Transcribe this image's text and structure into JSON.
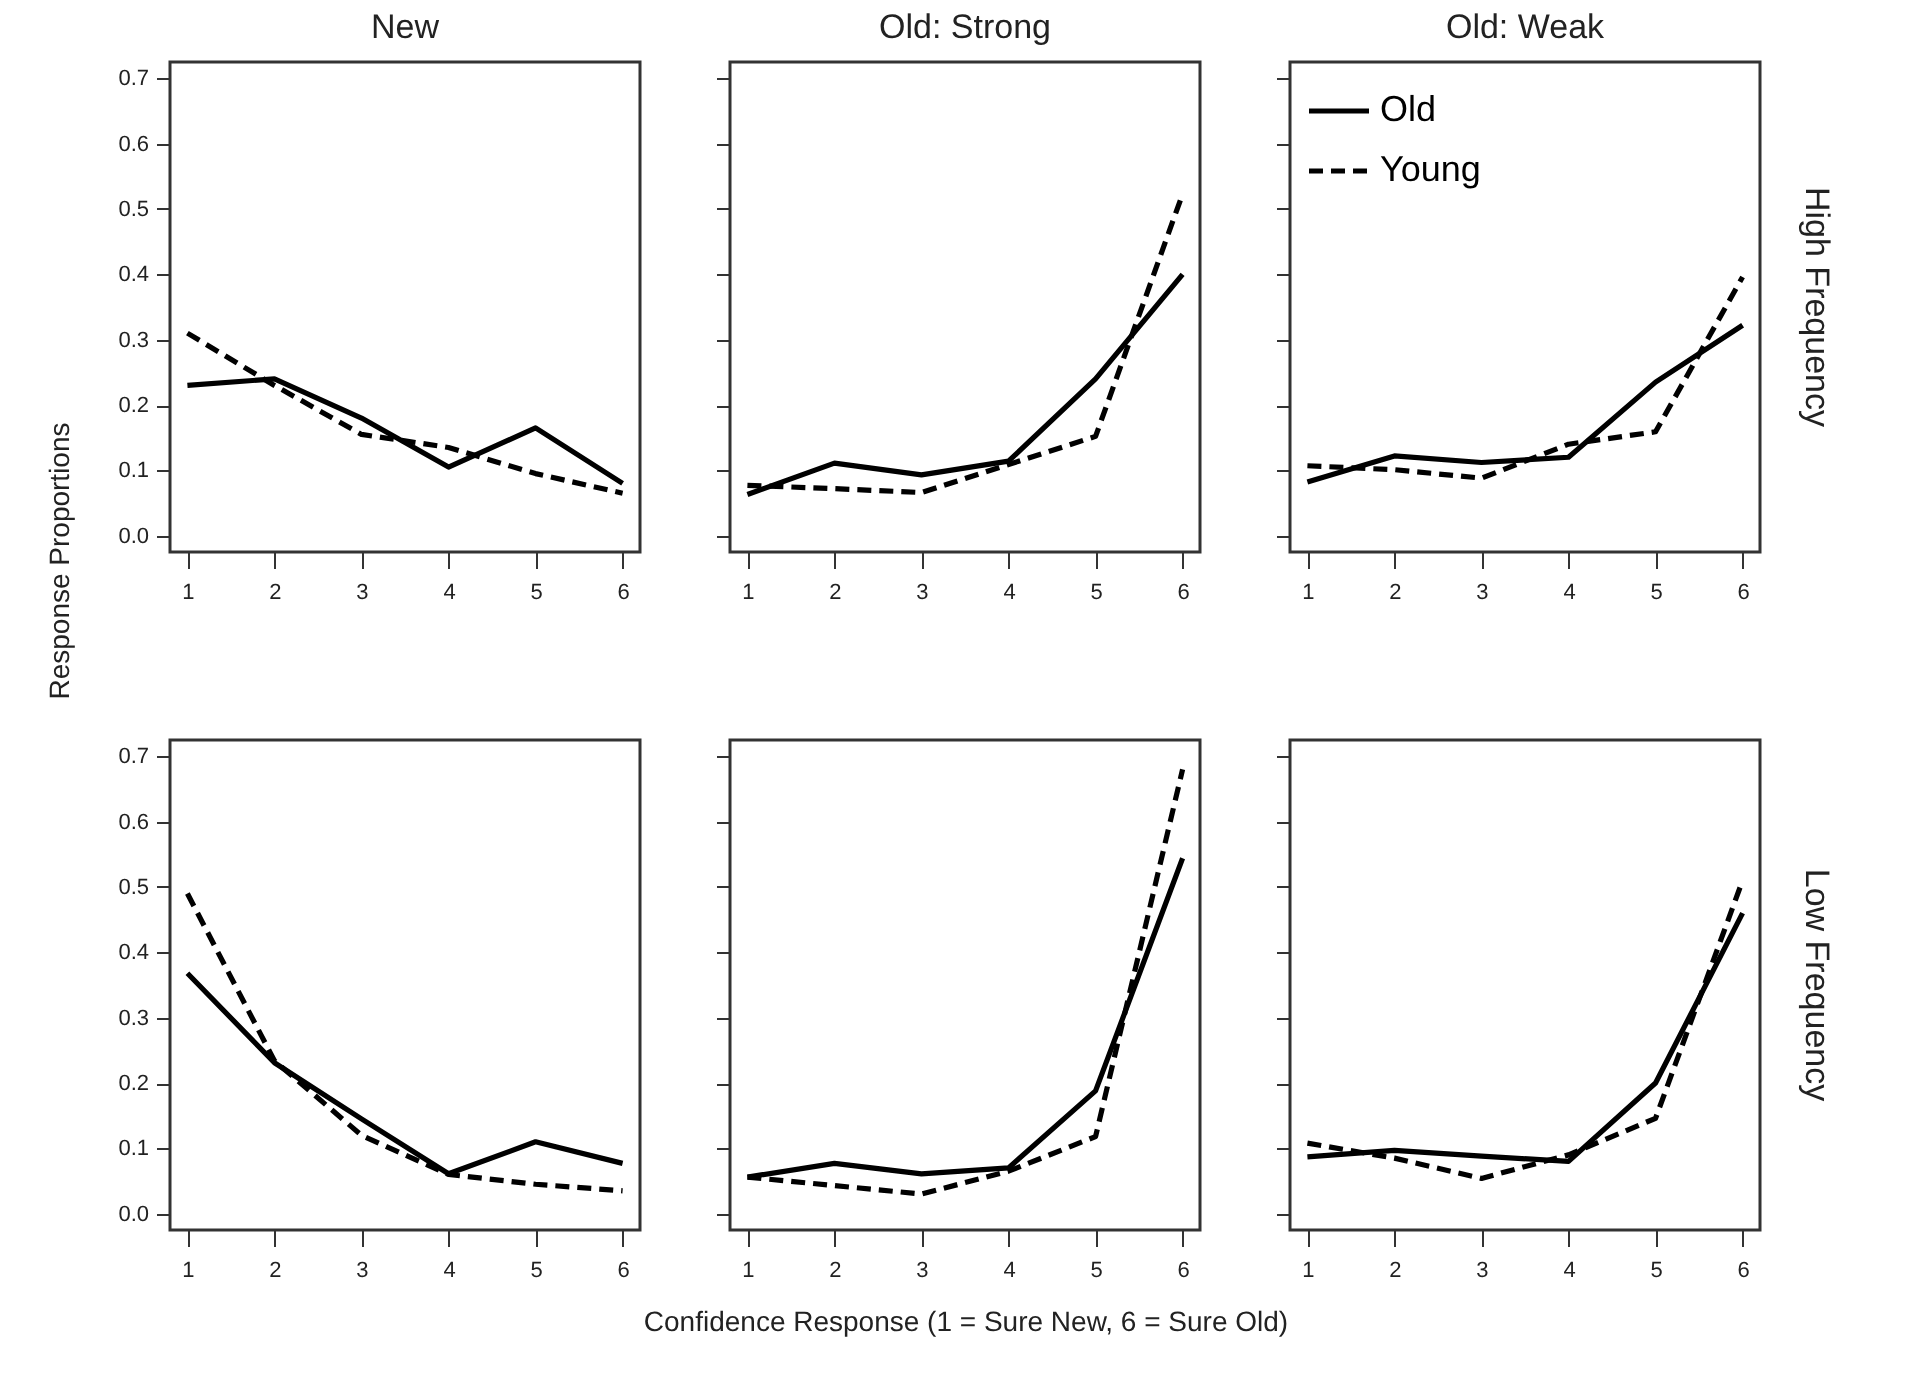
{
  "chart_data": [
    {
      "type": "line",
      "title": "New",
      "ylabel": "Response Proportions",
      "x": [
        1,
        2,
        3,
        4,
        5,
        6
      ],
      "xlim": [
        0.8,
        6.2
      ],
      "xticks": [
        1,
        2,
        3,
        4,
        5,
        6
      ],
      "ylim": [
        -0.025,
        0.725
      ],
      "yticks": [
        {
          "value": 0,
          "label": "0.0"
        },
        0.1,
        0.2,
        0.3,
        0.4,
        0.5,
        0.6,
        0.7
      ],
      "series": [
        {
          "color": "#000000",
          "line_style": "solid",
          "values": [
            0.23,
            0.24,
            0.18,
            0.105,
            0.165,
            0.08
          ]
        },
        {
          "color": "#000000",
          "line_style": "dashed",
          "values": [
            0.31,
            0.23,
            0.155,
            0.135,
            0.095,
            0.065
          ]
        }
      ]
    },
    {
      "type": "line",
      "title": "Old: Strong",
      "tick_labels": "x",
      "x": [
        1,
        2,
        3,
        4,
        5,
        6
      ],
      "xlim": [
        0.8,
        6.2
      ],
      "xticks": [
        1,
        2,
        3,
        4,
        5,
        6
      ],
      "ylim": [
        -0.025,
        0.725
      ],
      "yticks": [
        {
          "value": 0,
          "label": null
        },
        {
          "value": 0.1,
          "label": null
        },
        {
          "value": 0.2,
          "label": null
        },
        {
          "value": 0.3,
          "label": null
        },
        {
          "value": 0.4,
          "label": null
        },
        {
          "value": 0.5,
          "label": null
        },
        {
          "value": 0.6,
          "label": null
        },
        {
          "value": 0.7,
          "label": null
        }
      ],
      "series": [
        {
          "color": "#000000",
          "line_style": "solid",
          "values": [
            0.063,
            0.111,
            0.093,
            0.114,
            0.24,
            0.4
          ]
        },
        {
          "color": "#000000",
          "line_style": "dashed",
          "values": [
            0.077,
            0.072,
            0.066,
            0.109,
            0.152,
            0.523
          ]
        }
      ]
    },
    {
      "type": "line",
      "title": "Old: Weak",
      "tick_labels": "x",
      "legend": "top left",
      "annotations": [
        "High Frequency"
      ],
      "x": [
        1,
        2,
        3,
        4,
        5,
        6
      ],
      "xlim": [
        0.8,
        6.2
      ],
      "xticks": [
        1,
        2,
        3,
        4,
        5,
        6
      ],
      "ylim": [
        -0.025,
        0.725
      ],
      "yticks": [
        {
          "value": 0,
          "label": null
        },
        {
          "value": 0.1,
          "label": null
        },
        {
          "value": 0.2,
          "label": null
        },
        {
          "value": 0.3,
          "label": null
        },
        {
          "value": 0.4,
          "label": null
        },
        {
          "value": 0.5,
          "label": null
        },
        {
          "value": 0.6,
          "label": null
        },
        {
          "value": 0.7,
          "label": null
        }
      ],
      "series": [
        {
          "name": "Old",
          "color": "#000000",
          "line_style": "solid",
          "values": [
            0.082,
            0.122,
            0.112,
            0.12,
            0.235,
            0.322
          ]
        },
        {
          "name": "Young",
          "color": "#000000",
          "line_style": "dashed",
          "values": [
            0.107,
            0.101,
            0.088,
            0.14,
            0.159,
            0.396
          ]
        }
      ]
    },
    {
      "type": "line",
      "x": [
        1,
        2,
        3,
        4,
        5,
        6
      ],
      "xlim": [
        0.8,
        6.2
      ],
      "xticks": [
        1,
        2,
        3,
        4,
        5,
        6
      ],
      "ylim": [
        -0.025,
        0.725
      ],
      "yticks": [
        {
          "value": 0,
          "label": "0.0"
        },
        0.1,
        0.2,
        0.3,
        0.4,
        0.5,
        0.6,
        0.7
      ],
      "series": [
        {
          "color": "#000000",
          "line_style": "solid",
          "values": [
            0.368,
            0.231,
            0.145,
            0.061,
            0.11,
            0.077
          ]
        },
        {
          "color": "#000000",
          "line_style": "dashed",
          "values": [
            0.49,
            0.234,
            0.12,
            0.06,
            0.045,
            0.035
          ]
        }
      ]
    },
    {
      "type": "line",
      "tick_labels": "x",
      "xlabel": "Confidence Response (1 = Sure New, 6 = Sure Old)",
      "x": [
        1,
        2,
        3,
        4,
        5,
        6
      ],
      "xlim": [
        0.8,
        6.2
      ],
      "xticks": [
        1,
        2,
        3,
        4,
        5,
        6
      ],
      "ylim": [
        -0.025,
        0.725
      ],
      "yticks": [
        {
          "value": 0,
          "label": null
        },
        {
          "value": 0.1,
          "label": null
        },
        {
          "value": 0.2,
          "label": null
        },
        {
          "value": 0.3,
          "label": null
        },
        {
          "value": 0.4,
          "label": null
        },
        {
          "value": 0.5,
          "label": null
        },
        {
          "value": 0.6,
          "label": null
        },
        {
          "value": 0.7,
          "label": null
        }
      ],
      "series": [
        {
          "color": "#000000",
          "line_style": "solid",
          "values": [
            0.056,
            0.077,
            0.061,
            0.07,
            0.188,
            0.544
          ]
        },
        {
          "color": "#000000",
          "line_style": "dashed",
          "values": [
            0.056,
            0.043,
            0.03,
            0.065,
            0.118,
            0.68
          ]
        }
      ]
    },
    {
      "type": "line",
      "tick_labels": "x",
      "annotations": [
        "Low Frequency"
      ],
      "x": [
        1,
        2,
        3,
        4,
        5,
        6
      ],
      "xlim": [
        0.8,
        6.2
      ],
      "xticks": [
        1,
        2,
        3,
        4,
        5,
        6
      ],
      "ylim": [
        -0.025,
        0.725
      ],
      "yticks": [
        {
          "value": 0,
          "label": null
        },
        {
          "value": 0.1,
          "label": null
        },
        {
          "value": 0.2,
          "label": null
        },
        {
          "value": 0.3,
          "label": null
        },
        {
          "value": 0.4,
          "label": null
        },
        {
          "value": 0.5,
          "label": null
        },
        {
          "value": 0.6,
          "label": null
        },
        {
          "value": 0.7,
          "label": null
        }
      ],
      "series": [
        {
          "color": "#000000",
          "line_style": "solid",
          "values": [
            0.087,
            0.097,
            0.088,
            0.08,
            0.2,
            0.46
          ]
        },
        {
          "color": "#000000",
          "line_style": "dashed",
          "values": [
            0.108,
            0.085,
            0.054,
            0.09,
            0.146,
            0.51
          ]
        }
      ]
    }
  ]
}
